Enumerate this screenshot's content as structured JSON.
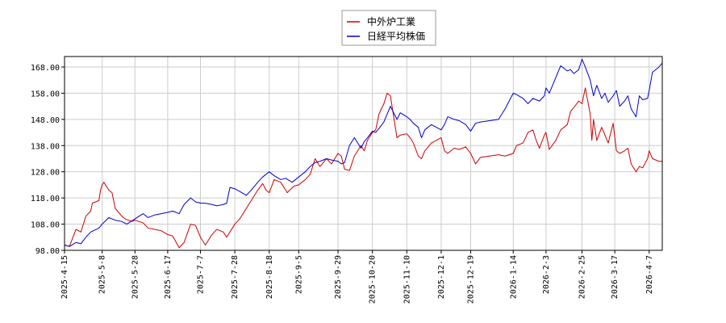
{
  "chart_data": {
    "type": "line",
    "title": "",
    "xlabel": "",
    "ylabel": "",
    "ylim": [
      98,
      172
    ],
    "yticks": [
      98,
      108,
      118,
      128,
      138,
      148,
      158,
      168
    ],
    "ytick_labels": [
      "98.00",
      "108.00",
      "118.00",
      "128.00",
      "138.00",
      "148.00",
      "158.00",
      "168.00"
    ],
    "xlim": [
      "2025-04-15",
      "2026-04-15"
    ],
    "xticks": [
      "2025-04-15",
      "2025-05-08",
      "2025-05-28",
      "2025-06-17",
      "2025-07-07",
      "2025-07-28",
      "2025-08-18",
      "2025-09-05",
      "2025-09-29",
      "2025-10-20",
      "2025-11-10",
      "2025-12-01",
      "2025-12-19",
      "2026-01-14",
      "2026-02-03",
      "2026-02-25",
      "2026-03-17",
      "2026-04-07"
    ],
    "xtick_labels": [
      "2025-4-15",
      "2025-5-8",
      "2025-5-28",
      "2025-6-17",
      "2025-7-7",
      "2025-7-28",
      "2025-8-18",
      "2025-9-5",
      "2025-9-29",
      "2025-10-20",
      "2025-11-10",
      "2025-12-1",
      "2025-12-19",
      "2026-1-14",
      "2026-2-3",
      "2026-2-25",
      "2026-3-17",
      "2026-4-7"
    ],
    "grid": true,
    "legend_position": "top-center",
    "series": [
      {
        "name": "中外炉工業",
        "color": "#cc0000",
        "points": [
          [
            "2025-04-15",
            100.0
          ],
          [
            "2025-04-18",
            99.5
          ],
          [
            "2025-04-22",
            106.0
          ],
          [
            "2025-04-25",
            105.0
          ],
          [
            "2025-04-28",
            111.0
          ],
          [
            "2025-05-01",
            113.0
          ],
          [
            "2025-05-02",
            116.0
          ],
          [
            "2025-05-06",
            117.0
          ],
          [
            "2025-05-07",
            121.0
          ],
          [
            "2025-05-08",
            123.0
          ],
          [
            "2025-05-09",
            124.0
          ],
          [
            "2025-05-12",
            121.0
          ],
          [
            "2025-05-14",
            120.0
          ],
          [
            "2025-05-16",
            114.0
          ],
          [
            "2025-05-20",
            111.0
          ],
          [
            "2025-05-22",
            110.0
          ],
          [
            "2025-05-26",
            109.0
          ],
          [
            "2025-05-28",
            109.5
          ],
          [
            "2025-06-02",
            108.5
          ],
          [
            "2025-06-05",
            106.5
          ],
          [
            "2025-06-09",
            106.0
          ],
          [
            "2025-06-13",
            105.5
          ],
          [
            "2025-06-17",
            104.0
          ],
          [
            "2025-06-20",
            103.5
          ],
          [
            "2025-06-24",
            99.0
          ],
          [
            "2025-06-27",
            101.0
          ],
          [
            "2025-07-01",
            108.0
          ],
          [
            "2025-07-04",
            107.5
          ],
          [
            "2025-07-07",
            103.0
          ],
          [
            "2025-07-10",
            100.0
          ],
          [
            "2025-07-14",
            104.0
          ],
          [
            "2025-07-17",
            106.0
          ],
          [
            "2025-07-21",
            105.0
          ],
          [
            "2025-07-23",
            103.0
          ],
          [
            "2025-07-28",
            108.0
          ],
          [
            "2025-07-31",
            110.0
          ],
          [
            "2025-08-04",
            114.0
          ],
          [
            "2025-08-07",
            117.0
          ],
          [
            "2025-08-11",
            121.0
          ],
          [
            "2025-08-14",
            123.5
          ],
          [
            "2025-08-16",
            121.0
          ],
          [
            "2025-08-18",
            120.0
          ],
          [
            "2025-08-21",
            125.0
          ],
          [
            "2025-08-25",
            124.0
          ],
          [
            "2025-08-27",
            122.0
          ],
          [
            "2025-08-29",
            120.0
          ],
          [
            "2025-09-02",
            122.5
          ],
          [
            "2025-09-05",
            123.0
          ],
          [
            "2025-09-09",
            125.0
          ],
          [
            "2025-09-12",
            127.0
          ],
          [
            "2025-09-15",
            133.0
          ],
          [
            "2025-09-18",
            130.0
          ],
          [
            "2025-09-22",
            133.0
          ],
          [
            "2025-09-25",
            131.0
          ],
          [
            "2025-09-29",
            135.0
          ],
          [
            "2025-10-01",
            134.0
          ],
          [
            "2025-10-03",
            129.0
          ],
          [
            "2025-10-06",
            128.5
          ],
          [
            "2025-10-09",
            134.0
          ],
          [
            "2025-10-13",
            138.0
          ],
          [
            "2025-10-15",
            136.0
          ],
          [
            "2025-10-17",
            140.0
          ],
          [
            "2025-10-20",
            143.0
          ],
          [
            "2025-10-22",
            144.0
          ],
          [
            "2025-10-24",
            150.0
          ],
          [
            "2025-10-27",
            154.0
          ],
          [
            "2025-10-29",
            158.0
          ],
          [
            "2025-10-31",
            157.0
          ],
          [
            "2025-11-04",
            141.0
          ],
          [
            "2025-11-06",
            142.0
          ],
          [
            "2025-11-10",
            142.5
          ],
          [
            "2025-11-12",
            141.0
          ],
          [
            "2025-11-14",
            139.0
          ],
          [
            "2025-11-17",
            134.0
          ],
          [
            "2025-11-19",
            133.0
          ],
          [
            "2025-11-21",
            136.0
          ],
          [
            "2025-11-25",
            139.0
          ],
          [
            "2025-11-28",
            140.0
          ],
          [
            "2025-12-01",
            141.0
          ],
          [
            "2025-12-03",
            136.0
          ],
          [
            "2025-12-05",
            135.0
          ],
          [
            "2025-12-09",
            137.0
          ],
          [
            "2025-12-12",
            136.5
          ],
          [
            "2025-12-16",
            137.5
          ],
          [
            "2025-12-19",
            135.0
          ],
          [
            "2025-12-22",
            131.0
          ],
          [
            "2025-12-25",
            133.5
          ],
          [
            "2026-01-05",
            134.5
          ],
          [
            "2026-01-09",
            134.0
          ],
          [
            "2026-01-14",
            135.0
          ],
          [
            "2026-01-16",
            138.0
          ],
          [
            "2026-01-20",
            139.0
          ],
          [
            "2026-01-23",
            143.0
          ],
          [
            "2026-01-26",
            144.0
          ],
          [
            "2026-01-28",
            140.0
          ],
          [
            "2026-01-30",
            137.0
          ],
          [
            "2026-02-02",
            142.0
          ],
          [
            "2026-02-03",
            143.0
          ],
          [
            "2026-02-05",
            136.5
          ],
          [
            "2026-02-09",
            140.0
          ],
          [
            "2026-02-12",
            144.0
          ],
          [
            "2026-02-16",
            146.0
          ],
          [
            "2026-02-18",
            151.0
          ],
          [
            "2026-02-20",
            152.5
          ],
          [
            "2026-02-23",
            155.0
          ],
          [
            "2026-02-25",
            154.0
          ],
          [
            "2026-02-27",
            160.0
          ],
          [
            "2026-03-02",
            150.0
          ],
          [
            "2026-03-03",
            140.0
          ],
          [
            "2026-03-04",
            148.0
          ],
          [
            "2026-03-06",
            140.0
          ],
          [
            "2026-03-09",
            145.0
          ],
          [
            "2026-03-11",
            142.0
          ],
          [
            "2026-03-13",
            139.0
          ],
          [
            "2026-03-16",
            146.5
          ],
          [
            "2026-03-18",
            136.0
          ],
          [
            "2026-03-20",
            135.0
          ],
          [
            "2026-03-23",
            136.0
          ],
          [
            "2026-03-25",
            137.0
          ],
          [
            "2026-03-27",
            131.0
          ],
          [
            "2026-03-30",
            128.0
          ],
          [
            "2026-04-01",
            130.0
          ],
          [
            "2026-04-03",
            129.5
          ],
          [
            "2026-04-06",
            133.0
          ],
          [
            "2026-04-07",
            136.0
          ],
          [
            "2026-04-09",
            133.0
          ],
          [
            "2026-04-13",
            132.0
          ],
          [
            "2026-04-15",
            132.0
          ]
        ]
      },
      {
        "name": "日経平均株価",
        "color": "#0000cc",
        "points": [
          [
            "2025-04-15",
            100.0
          ],
          [
            "2025-04-18",
            99.5
          ],
          [
            "2025-04-22",
            101.0
          ],
          [
            "2025-04-25",
            100.5
          ],
          [
            "2025-04-28",
            103.0
          ],
          [
            "2025-05-01",
            105.0
          ],
          [
            "2025-05-06",
            106.5
          ],
          [
            "2025-05-08",
            108.0
          ],
          [
            "2025-05-12",
            110.5
          ],
          [
            "2025-05-16",
            109.5
          ],
          [
            "2025-05-20",
            109.0
          ],
          [
            "2025-05-23",
            108.0
          ],
          [
            "2025-05-28",
            110.0
          ],
          [
            "2025-06-02",
            112.0
          ],
          [
            "2025-06-05",
            110.5
          ],
          [
            "2025-06-09",
            111.5
          ],
          [
            "2025-06-13",
            112.0
          ],
          [
            "2025-06-17",
            112.5
          ],
          [
            "2025-06-20",
            113.0
          ],
          [
            "2025-06-24",
            112.0
          ],
          [
            "2025-06-27",
            115.5
          ],
          [
            "2025-07-01",
            118.0
          ],
          [
            "2025-07-04",
            116.5
          ],
          [
            "2025-07-07",
            116.0
          ],
          [
            "2025-07-10",
            116.0
          ],
          [
            "2025-07-14",
            115.5
          ],
          [
            "2025-07-17",
            115.0
          ],
          [
            "2025-07-21",
            115.5
          ],
          [
            "2025-07-23",
            116.0
          ],
          [
            "2025-07-25",
            122.0
          ],
          [
            "2025-07-28",
            121.5
          ],
          [
            "2025-07-31",
            120.5
          ],
          [
            "2025-08-04",
            119.0
          ],
          [
            "2025-08-07",
            121.0
          ],
          [
            "2025-08-11",
            124.0
          ],
          [
            "2025-08-14",
            126.0
          ],
          [
            "2025-08-16",
            127.0
          ],
          [
            "2025-08-18",
            128.0
          ],
          [
            "2025-08-21",
            126.5
          ],
          [
            "2025-08-25",
            125.0
          ],
          [
            "2025-08-28",
            125.5
          ],
          [
            "2025-09-01",
            124.0
          ],
          [
            "2025-09-05",
            126.0
          ],
          [
            "2025-09-09",
            128.0
          ],
          [
            "2025-09-12",
            130.0
          ],
          [
            "2025-09-15",
            131.5
          ],
          [
            "2025-09-18",
            132.0
          ],
          [
            "2025-09-22",
            133.0
          ],
          [
            "2025-09-25",
            132.5
          ],
          [
            "2025-09-29",
            132.0
          ],
          [
            "2025-10-01",
            131.0
          ],
          [
            "2025-10-03",
            131.5
          ],
          [
            "2025-10-06",
            138.0
          ],
          [
            "2025-10-09",
            141.0
          ],
          [
            "2025-10-13",
            137.0
          ],
          [
            "2025-10-15",
            139.5
          ],
          [
            "2025-10-17",
            141.0
          ],
          [
            "2025-10-20",
            143.5
          ],
          [
            "2025-10-22",
            143.0
          ],
          [
            "2025-10-24",
            144.5
          ],
          [
            "2025-10-27",
            147.0
          ],
          [
            "2025-10-29",
            150.0
          ],
          [
            "2025-10-31",
            153.0
          ],
          [
            "2025-11-04",
            148.0
          ],
          [
            "2025-11-06",
            150.5
          ],
          [
            "2025-11-10",
            149.0
          ],
          [
            "2025-11-12",
            148.0
          ],
          [
            "2025-11-14",
            146.5
          ],
          [
            "2025-11-17",
            145.0
          ],
          [
            "2025-11-19",
            141.0
          ],
          [
            "2025-11-21",
            144.0
          ],
          [
            "2025-11-25",
            146.0
          ],
          [
            "2025-11-28",
            145.0
          ],
          [
            "2025-12-01",
            144.0
          ],
          [
            "2025-12-03",
            146.0
          ],
          [
            "2025-12-05",
            149.0
          ],
          [
            "2025-12-09",
            148.0
          ],
          [
            "2025-12-12",
            147.5
          ],
          [
            "2025-12-16",
            146.0
          ],
          [
            "2025-12-19",
            143.5
          ],
          [
            "2025-12-22",
            146.5
          ],
          [
            "2025-12-25",
            147.0
          ],
          [
            "2026-01-05",
            148.0
          ],
          [
            "2026-01-09",
            152.0
          ],
          [
            "2026-01-14",
            158.0
          ],
          [
            "2026-01-16",
            157.5
          ],
          [
            "2026-01-20",
            156.0
          ],
          [
            "2026-01-23",
            154.0
          ],
          [
            "2026-01-26",
            156.0
          ],
          [
            "2026-01-28",
            155.5
          ],
          [
            "2026-01-30",
            155.0
          ],
          [
            "2026-02-02",
            157.0
          ],
          [
            "2026-02-03",
            160.0
          ],
          [
            "2026-02-05",
            158.0
          ],
          [
            "2026-02-09",
            164.0
          ],
          [
            "2026-02-12",
            168.5
          ],
          [
            "2026-02-16",
            166.5
          ],
          [
            "2026-02-18",
            167.0
          ],
          [
            "2026-02-20",
            165.5
          ],
          [
            "2026-02-23",
            167.0
          ],
          [
            "2026-02-25",
            171.0
          ],
          [
            "2026-02-27",
            168.0
          ],
          [
            "2026-03-02",
            163.0
          ],
          [
            "2026-03-04",
            157.0
          ],
          [
            "2026-03-06",
            161.0
          ],
          [
            "2026-03-09",
            156.0
          ],
          [
            "2026-03-11",
            158.0
          ],
          [
            "2026-03-13",
            154.5
          ],
          [
            "2026-03-16",
            157.0
          ],
          [
            "2026-03-18",
            159.0
          ],
          [
            "2026-03-20",
            153.0
          ],
          [
            "2026-03-23",
            155.0
          ],
          [
            "2026-03-25",
            157.0
          ],
          [
            "2026-03-27",
            152.0
          ],
          [
            "2026-03-30",
            149.0
          ],
          [
            "2026-04-01",
            157.0
          ],
          [
            "2026-04-03",
            155.5
          ],
          [
            "2026-04-06",
            156.0
          ],
          [
            "2026-04-07",
            159.0
          ],
          [
            "2026-04-09",
            166.0
          ],
          [
            "2026-04-13",
            168.0
          ],
          [
            "2026-04-15",
            169.5
          ]
        ]
      }
    ]
  }
}
